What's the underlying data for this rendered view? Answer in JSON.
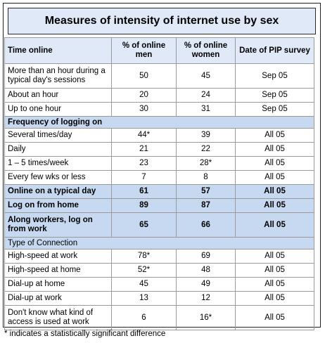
{
  "title": "Measures of intensity of internet use by sex",
  "header": {
    "col1": "Time online",
    "col2": "% of online men",
    "col3": "% of online women",
    "col4": "Date of PIP survey"
  },
  "rows": [
    {
      "label": "More than an hour during a typical day's sessions",
      "men": "50",
      "women": "45",
      "date": "Sep 05"
    },
    {
      "label": "About an hour",
      "men": "20",
      "women": "24",
      "date": "Sep 05"
    },
    {
      "label": "Up to one hour",
      "men": "30",
      "women": "31",
      "date": "Sep 05"
    },
    {
      "section": "Frequency of logging on"
    },
    {
      "label": "Several times/day",
      "men": "44*",
      "women": "39",
      "date": "All 05"
    },
    {
      "label": "Daily",
      "men": "21",
      "women": "22",
      "date": "All 05"
    },
    {
      "label": "1 – 5 times/week",
      "men": "23",
      "women": "28*",
      "date": "All 05"
    },
    {
      "label": "Every few wks or less",
      "men": "7",
      "women": "8",
      "date": "All 05"
    },
    {
      "label": "Online on a typical day",
      "men": "61",
      "women": "57",
      "date": "All 05",
      "bold": true
    },
    {
      "label": "Log on from home",
      "men": "89",
      "women": "87",
      "date": "All 05",
      "bold": true
    },
    {
      "label": "Along workers, log on from work",
      "men": "65",
      "women": "66",
      "date": "All 05",
      "bold": true
    },
    {
      "section": "Type of Connection",
      "plain": true
    },
    {
      "label": "High-speed at work",
      "men": "78*",
      "women": "69",
      "date": "All 05"
    },
    {
      "label": "High-speed at home",
      "men": "52*",
      "women": "48",
      "date": "All 05"
    },
    {
      "label": "Dial-up at home",
      "men": "45",
      "women": "49",
      "date": "All 05"
    },
    {
      "label": "Dial-up at work",
      "men": "13",
      "women": "12",
      "date": "All 05"
    },
    {
      "label": "Don't know what kind of access is used at work",
      "men": "6",
      "women": "16*",
      "date": "All 05"
    }
  ],
  "footnote": "* indicates a statistically significant difference"
}
